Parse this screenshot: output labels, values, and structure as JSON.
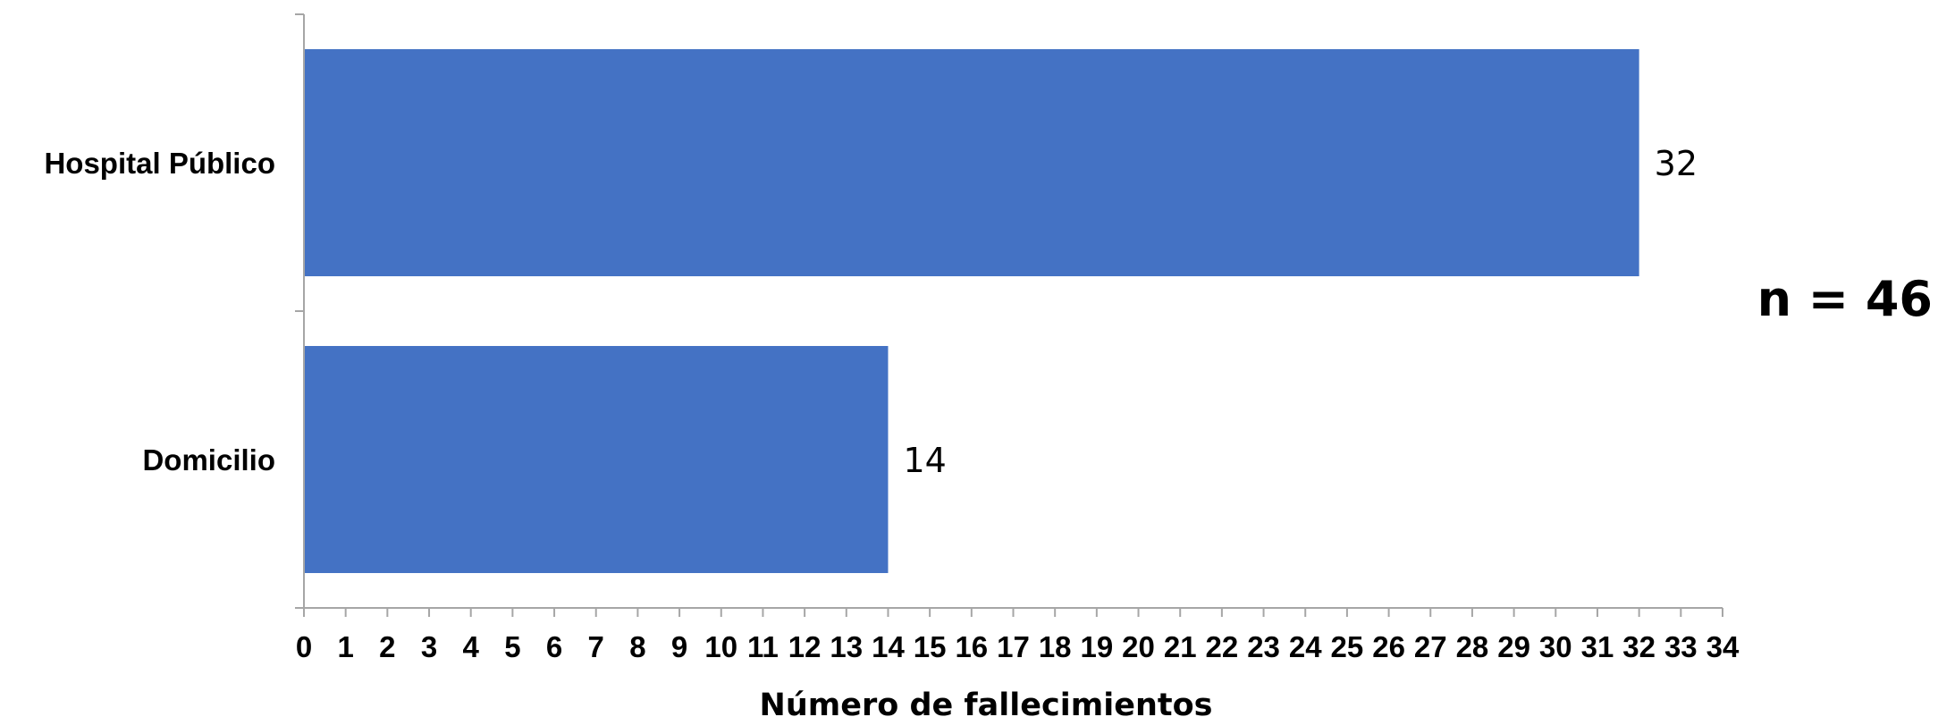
{
  "chart_data": {
    "type": "bar",
    "orientation": "horizontal",
    "categories": [
      "Hospital Público",
      "Domicilio"
    ],
    "values": [
      32,
      14
    ],
    "data_labels": [
      "32",
      "14"
    ],
    "title": "",
    "xlabel": "Número de fallecimientos",
    "ylabel": "",
    "xlim": [
      0,
      34
    ],
    "x_ticks": [
      "0",
      "1",
      "2",
      "3",
      "4",
      "5",
      "6",
      "7",
      "8",
      "9",
      "10",
      "11",
      "12",
      "13",
      "14",
      "15",
      "16",
      "17",
      "18",
      "19",
      "20",
      "21",
      "22",
      "23",
      "24",
      "25",
      "26",
      "27",
      "28",
      "29",
      "30",
      "31",
      "32",
      "33",
      "34"
    ],
    "grid": false,
    "legend": "none",
    "annotation": "n = 46",
    "bar_color": "#4472C4",
    "axis_color": "#A6A6A6"
  }
}
